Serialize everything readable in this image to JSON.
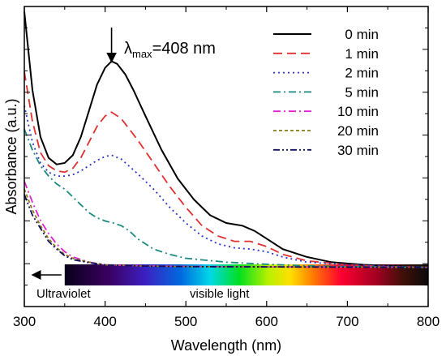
{
  "chart_data": {
    "type": "line",
    "xlabel": "Wavelength (nm)",
    "ylabel": "Absorbance (a.u.)",
    "xlim": [
      300,
      800
    ],
    "ylim": [
      -0.15,
      1.0
    ],
    "x_ticks": [
      300,
      400,
      500,
      600,
      700,
      800
    ],
    "y_tick_labels_shown": false,
    "grid": false,
    "legend_position": "top-right",
    "annotation": {
      "text": "λmax=408 nm",
      "symbol": "λ",
      "subscript": "max",
      "value": "=408 nm",
      "x": 408
    },
    "spectrum_bar": {
      "x_range": [
        350,
        800
      ],
      "labels": [
        "Ultraviolet",
        "visible light"
      ]
    },
    "series": [
      {
        "name": "0 min",
        "color": "#000000",
        "dash": "solid",
        "points": [
          [
            300,
            0.98
          ],
          [
            310,
            0.68
          ],
          [
            320,
            0.5
          ],
          [
            330,
            0.42
          ],
          [
            340,
            0.395
          ],
          [
            350,
            0.4
          ],
          [
            360,
            0.43
          ],
          [
            370,
            0.5
          ],
          [
            380,
            0.6
          ],
          [
            390,
            0.7
          ],
          [
            400,
            0.765
          ],
          [
            408,
            0.79
          ],
          [
            415,
            0.78
          ],
          [
            425,
            0.74
          ],
          [
            435,
            0.68
          ],
          [
            450,
            0.58
          ],
          [
            470,
            0.45
          ],
          [
            490,
            0.34
          ],
          [
            510,
            0.26
          ],
          [
            530,
            0.2
          ],
          [
            550,
            0.17
          ],
          [
            570,
            0.16
          ],
          [
            585,
            0.14
          ],
          [
            600,
            0.11
          ],
          [
            620,
            0.07
          ],
          [
            650,
            0.04
          ],
          [
            680,
            0.02
          ],
          [
            720,
            0.01
          ],
          [
            760,
            0.005
          ],
          [
            800,
            0.0
          ]
        ]
      },
      {
        "name": "1 min",
        "color": "#e03030",
        "dash": "long",
        "points": [
          [
            300,
            0.75
          ],
          [
            310,
            0.56
          ],
          [
            320,
            0.44
          ],
          [
            330,
            0.39
          ],
          [
            340,
            0.37
          ],
          [
            350,
            0.365
          ],
          [
            360,
            0.38
          ],
          [
            370,
            0.42
          ],
          [
            380,
            0.48
          ],
          [
            390,
            0.54
          ],
          [
            400,
            0.58
          ],
          [
            408,
            0.595
          ],
          [
            420,
            0.57
          ],
          [
            440,
            0.49
          ],
          [
            460,
            0.4
          ],
          [
            480,
            0.31
          ],
          [
            500,
            0.23
          ],
          [
            520,
            0.16
          ],
          [
            540,
            0.12
          ],
          [
            560,
            0.1
          ],
          [
            580,
            0.1
          ],
          [
            600,
            0.08
          ],
          [
            620,
            0.05
          ],
          [
            650,
            0.025
          ],
          [
            700,
            0.01
          ],
          [
            750,
            0.003
          ],
          [
            800,
            0.0
          ]
        ]
      },
      {
        "name": "2 min",
        "color": "#2a34c8",
        "dash": "dot",
        "points": [
          [
            300,
            0.62
          ],
          [
            310,
            0.48
          ],
          [
            320,
            0.4
          ],
          [
            330,
            0.365
          ],
          [
            340,
            0.35
          ],
          [
            350,
            0.35
          ],
          [
            360,
            0.355
          ],
          [
            370,
            0.37
          ],
          [
            380,
            0.39
          ],
          [
            390,
            0.41
          ],
          [
            400,
            0.425
          ],
          [
            408,
            0.43
          ],
          [
            420,
            0.415
          ],
          [
            440,
            0.36
          ],
          [
            460,
            0.3
          ],
          [
            480,
            0.23
          ],
          [
            500,
            0.17
          ],
          [
            520,
            0.12
          ],
          [
            540,
            0.09
          ],
          [
            560,
            0.075
          ],
          [
            580,
            0.07
          ],
          [
            600,
            0.06
          ],
          [
            620,
            0.04
          ],
          [
            650,
            0.02
          ],
          [
            700,
            0.01
          ],
          [
            800,
            0.0
          ]
        ]
      },
      {
        "name": "5 min",
        "color": "#1a8a80",
        "dash": "dashdot",
        "points": [
          [
            300,
            0.53
          ],
          [
            310,
            0.45
          ],
          [
            320,
            0.39
          ],
          [
            330,
            0.35
          ],
          [
            340,
            0.32
          ],
          [
            350,
            0.3
          ],
          [
            360,
            0.27
          ],
          [
            370,
            0.24
          ],
          [
            380,
            0.21
          ],
          [
            390,
            0.19
          ],
          [
            400,
            0.178
          ],
          [
            410,
            0.17
          ],
          [
            420,
            0.16
          ],
          [
            430,
            0.14
          ],
          [
            440,
            0.11
          ],
          [
            460,
            0.07
          ],
          [
            480,
            0.05
          ],
          [
            500,
            0.035
          ],
          [
            550,
            0.02
          ],
          [
            600,
            0.012
          ],
          [
            650,
            0.006
          ],
          [
            700,
            0.003
          ],
          [
            800,
            0.0
          ]
        ]
      },
      {
        "name": "10 min",
        "color": "#e020d0",
        "dash": "dashdot",
        "points": [
          [
            300,
            0.33
          ],
          [
            310,
            0.25
          ],
          [
            320,
            0.18
          ],
          [
            330,
            0.13
          ],
          [
            340,
            0.09
          ],
          [
            350,
            0.06
          ],
          [
            360,
            0.04
          ],
          [
            380,
            0.02
          ],
          [
            400,
            0.01
          ],
          [
            450,
            0.006
          ],
          [
            500,
            0.004
          ],
          [
            600,
            0.002
          ],
          [
            800,
            0.0
          ]
        ]
      },
      {
        "name": "20 min",
        "color": "#8a7a10",
        "dash": "short",
        "points": [
          [
            300,
            0.3
          ],
          [
            310,
            0.22
          ],
          [
            320,
            0.16
          ],
          [
            330,
            0.11
          ],
          [
            340,
            0.075
          ],
          [
            350,
            0.05
          ],
          [
            360,
            0.035
          ],
          [
            380,
            0.02
          ],
          [
            400,
            0.01
          ],
          [
            450,
            0.005
          ],
          [
            500,
            0.003
          ],
          [
            600,
            0.002
          ],
          [
            800,
            0.0
          ]
        ]
      },
      {
        "name": "30 min",
        "color": "#101060",
        "dash": "dashdotdot",
        "points": [
          [
            300,
            0.28
          ],
          [
            310,
            0.2
          ],
          [
            320,
            0.15
          ],
          [
            330,
            0.1
          ],
          [
            340,
            0.07
          ],
          [
            350,
            0.045
          ],
          [
            360,
            0.03
          ],
          [
            380,
            0.018
          ],
          [
            400,
            0.009
          ],
          [
            450,
            0.005
          ],
          [
            500,
            0.003
          ],
          [
            600,
            0.002
          ],
          [
            800,
            0.0
          ]
        ]
      }
    ]
  }
}
